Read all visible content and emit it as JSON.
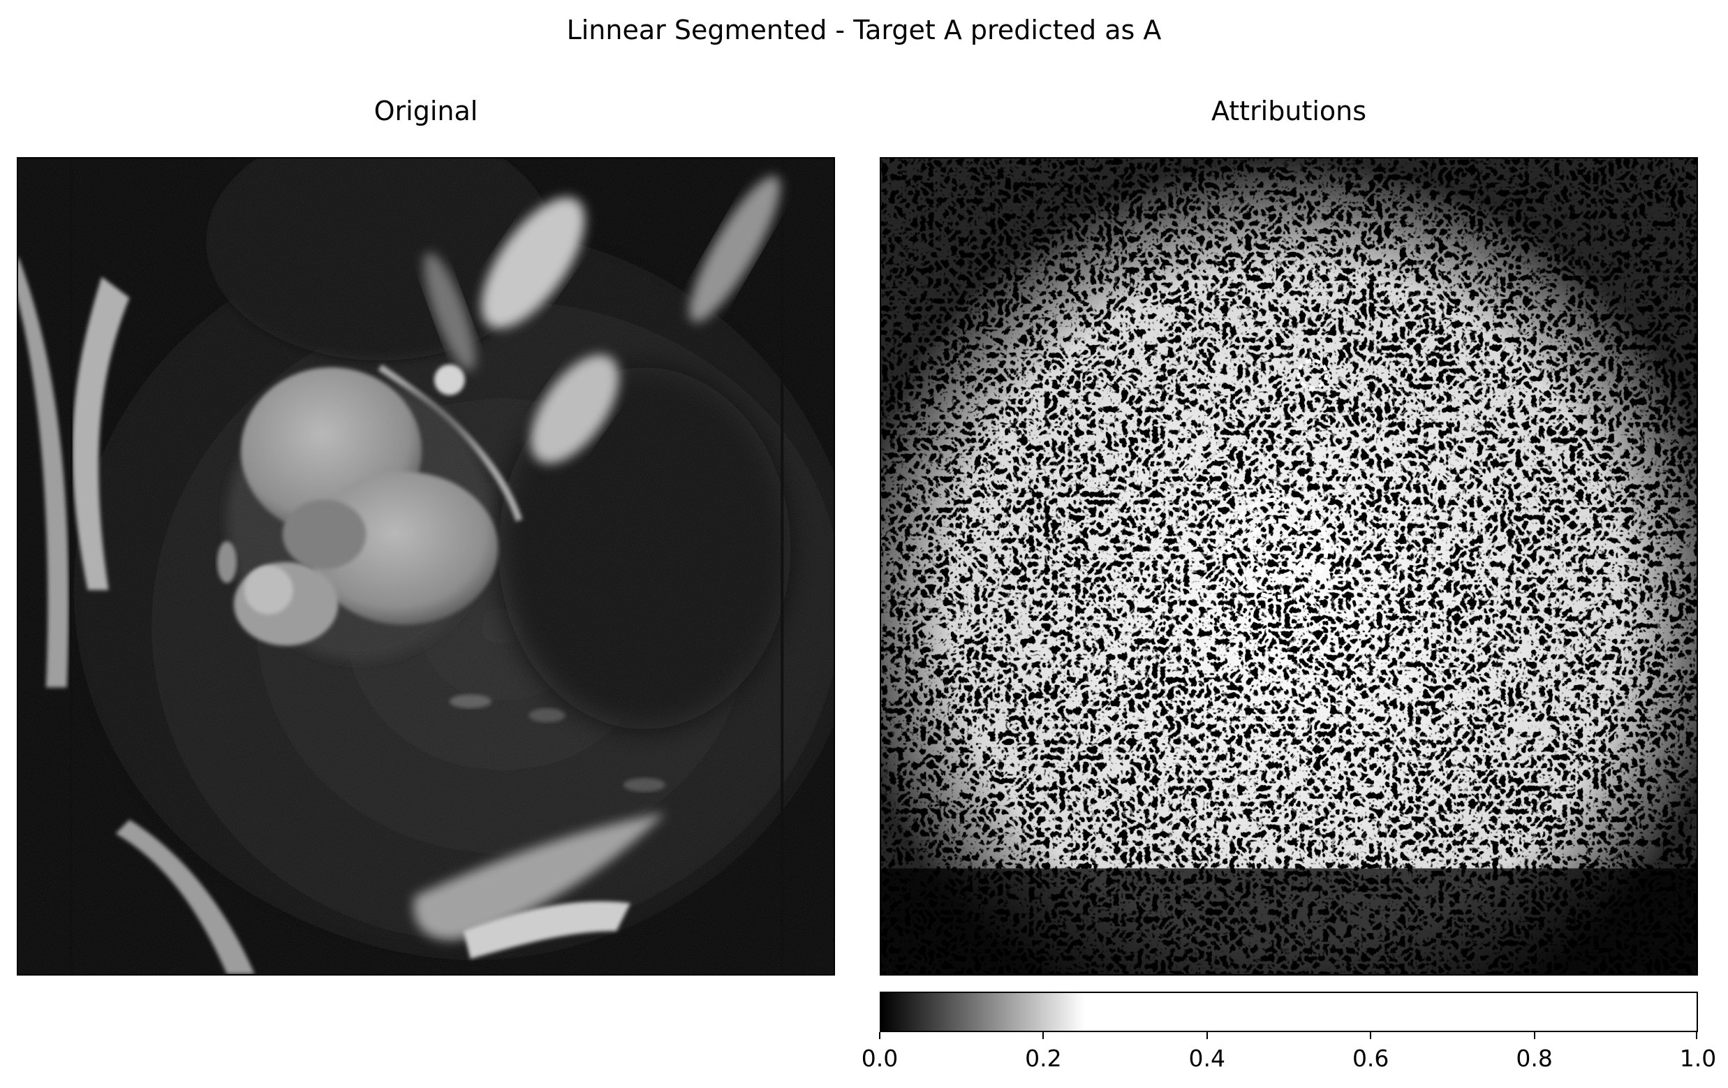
{
  "figure": {
    "title": "Linnear Segmented - Target A predicted as A"
  },
  "panels": {
    "original": {
      "title": "Original",
      "image": "cardiac-mri-slice",
      "colormap": "gray"
    },
    "attributions": {
      "title": "Attributions",
      "image": "attribution-heatmap",
      "colormap": "linear-segmented-black-to-white"
    }
  },
  "colorbar": {
    "ticks": [
      "0.0",
      "0.2",
      "0.4",
      "0.6",
      "0.8",
      "1.0"
    ],
    "range": [
      0.0,
      1.0
    ],
    "colors": {
      "low": "#000000",
      "saturation_point": 0.25,
      "high": "#ffffff"
    }
  }
}
